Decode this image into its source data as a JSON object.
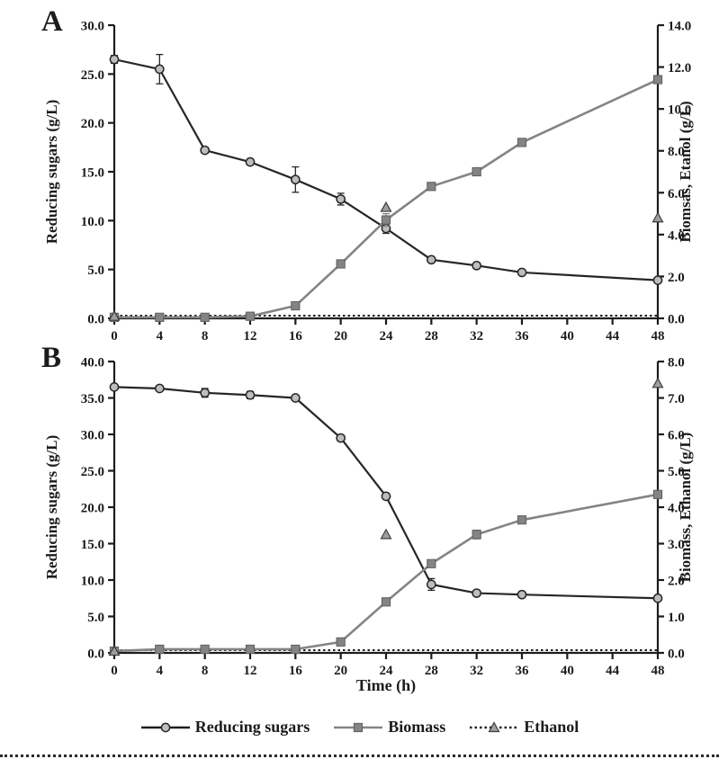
{
  "figure": {
    "x_axis_title": "Time (h)",
    "x_ticks": [
      "0",
      "4",
      "8",
      "12",
      "16",
      "20",
      "24",
      "28",
      "32",
      "36",
      "40",
      "44",
      "48"
    ],
    "x_min": 0,
    "x_max": 48
  },
  "legend": {
    "items": [
      {
        "label": "Reducing sugars",
        "marker": "circle",
        "line": "solid"
      },
      {
        "label": "Biomass",
        "marker": "square",
        "line": "solid"
      },
      {
        "label": "Ethanol",
        "marker": "triangle",
        "line": "dotted"
      }
    ]
  },
  "colors": {
    "text": "#1c1c1c",
    "line_dark": "#262626",
    "line_gray": "#848484",
    "marker_light": "#bdbdbd",
    "marker_mid": "#9e9e9e",
    "square_edge": "#5f5f5f",
    "triangle_edge": "#3c3c3c"
  },
  "chart_data": [
    {
      "type": "line",
      "panel": "A",
      "left_axis": {
        "label": "Reducing sugars (g/L)",
        "min": 0,
        "max": 30,
        "ticks": [
          "0.0",
          "5.0",
          "10.0",
          "15.0",
          "20.0",
          "25.0",
          "30.0"
        ]
      },
      "right_axis": {
        "label": "Biomsas, Etanol (g/L)",
        "min": 0,
        "max": 14,
        "ticks": [
          "0.0",
          "2.0",
          "4.0",
          "6.0",
          "8.0",
          "10.0",
          "12.0",
          "14.0"
        ]
      },
      "series": [
        {
          "name": "Reducing sugars",
          "axis": "left",
          "marker": "circle",
          "x": [
            0,
            4,
            8,
            12,
            16,
            20,
            24,
            28,
            32,
            36,
            48
          ],
          "values": [
            26.5,
            25.5,
            17.2,
            16.0,
            14.2,
            12.2,
            9.2,
            6.0,
            5.4,
            4.7,
            3.9
          ],
          "errors": [
            0.4,
            1.5,
            0.3,
            0.3,
            1.3,
            0.6,
            0.5,
            0.2,
            0.2,
            0.2,
            0.2
          ]
        },
        {
          "name": "Biomass",
          "axis": "right",
          "marker": "square",
          "x": [
            0,
            4,
            8,
            12,
            16,
            20,
            24,
            28,
            32,
            36,
            48
          ],
          "values": [
            0.05,
            0.05,
            0.05,
            0.1,
            0.6,
            2.6,
            4.7,
            6.3,
            7.0,
            8.4,
            11.4
          ],
          "errors": [
            0,
            0,
            0,
            0,
            0.1,
            0.15,
            0.3,
            0.1,
            0.1,
            0.1,
            0.1
          ]
        },
        {
          "name": "Ethanol",
          "axis": "right",
          "marker": "triangle",
          "baseline_dotted": true,
          "x": [
            0,
            24,
            48
          ],
          "values": [
            0.1,
            5.3,
            4.8
          ]
        }
      ]
    },
    {
      "type": "line",
      "panel": "B",
      "left_axis": {
        "label": "Reducing sugars (g/L)",
        "min": 0,
        "max": 40,
        "ticks": [
          "0.0",
          "5.0",
          "10.0",
          "15.0",
          "20.0",
          "25.0",
          "30.0",
          "35.0",
          "40.0"
        ]
      },
      "right_axis": {
        "label": "Biomass, Ethanol (g/L)",
        "min": 0,
        "max": 8,
        "ticks": [
          "0.0",
          "1.0",
          "2.0",
          "3.0",
          "4.0",
          "5.0",
          "6.0",
          "7.0",
          "8.0"
        ]
      },
      "series": [
        {
          "name": "Reducing sugars",
          "axis": "left",
          "marker": "circle",
          "x": [
            0,
            4,
            8,
            12,
            16,
            20,
            24,
            28,
            32,
            36,
            48
          ],
          "values": [
            36.5,
            36.3,
            35.7,
            35.4,
            35.0,
            29.5,
            21.5,
            9.4,
            8.2,
            8.0,
            7.5
          ],
          "errors": [
            0.3,
            0.3,
            0.6,
            0.5,
            0.3,
            0.4,
            0.4,
            0.8,
            0.3,
            0.2,
            0.2
          ]
        },
        {
          "name": "Biomass",
          "axis": "right",
          "marker": "square",
          "x": [
            0,
            4,
            8,
            12,
            16,
            20,
            24,
            28,
            32,
            36,
            48
          ],
          "values": [
            0.05,
            0.1,
            0.1,
            0.1,
            0.1,
            0.3,
            1.4,
            2.45,
            3.25,
            3.65,
            4.35
          ],
          "errors": [
            0,
            0,
            0,
            0,
            0,
            0,
            0.1,
            0.1,
            0.12,
            0.1,
            0.1
          ]
        },
        {
          "name": "Ethanol",
          "axis": "right",
          "marker": "triangle",
          "baseline_dotted": true,
          "x": [
            0,
            24,
            48
          ],
          "values": [
            0.05,
            3.25,
            7.4
          ]
        }
      ]
    }
  ]
}
